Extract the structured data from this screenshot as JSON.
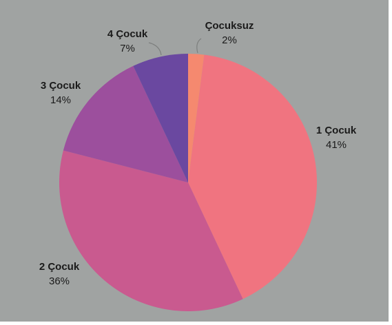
{
  "chart_data": {
    "type": "pie",
    "categories": [
      "Çocuksuz",
      "1 Çocuk",
      "2 Çocuk",
      "3 Çocuk",
      "4 Çocuk"
    ],
    "values": [
      2,
      41,
      36,
      14,
      7
    ],
    "value_labels": [
      "2%",
      "41%",
      "36%",
      "14%",
      "7%"
    ],
    "colors": [
      "#f5896f",
      "#f07480",
      "#c95a8f",
      "#9c4f9d",
      "#6a48a0"
    ]
  }
}
